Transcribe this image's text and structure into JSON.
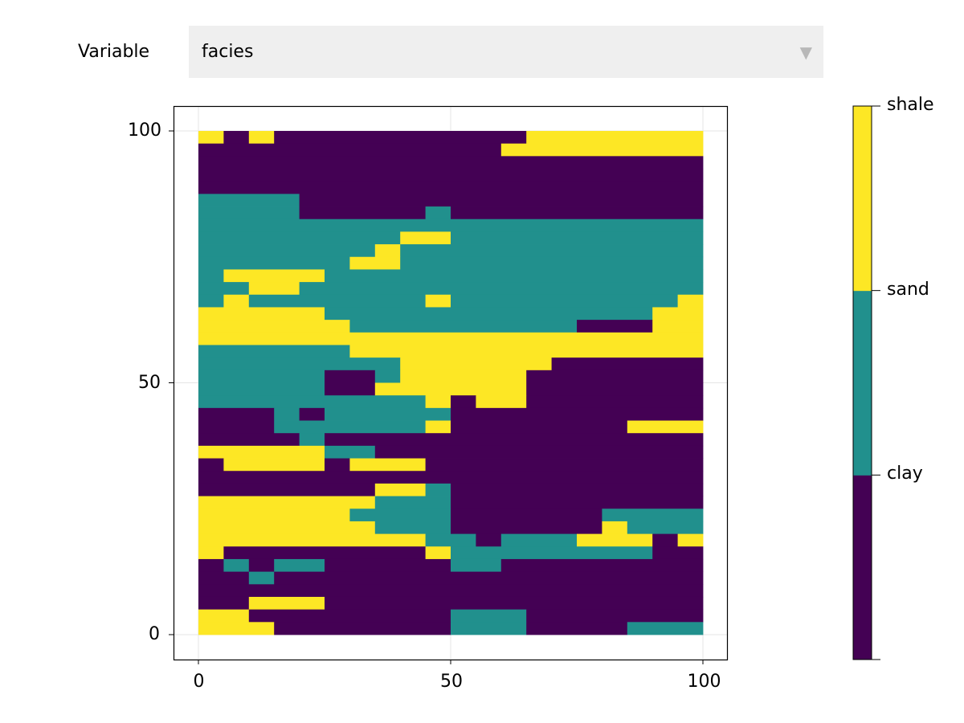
{
  "control": {
    "label": "Variable",
    "selected": "facies",
    "icon": "dropdown-triangle-icon"
  },
  "chart_data": {
    "type": "heatmap",
    "xlim": [
      0,
      100
    ],
    "ylim": [
      0,
      100
    ],
    "xticks": [
      "0",
      "50",
      "100"
    ],
    "yticks": [
      "0",
      "50",
      "100"
    ],
    "grid": true,
    "x_step": 5,
    "y_step": 2.5,
    "categories": [
      "clay",
      "sand",
      "shale"
    ],
    "category_colors": [
      "#440154",
      "#21908d",
      "#fde725"
    ],
    "colorbar": {
      "placement": "right",
      "tick_labels": [
        "clay",
        "sand",
        "shale"
      ]
    },
    "rows_top_to_bottom": [
      "20200000000002222222",
      "00000000000022222222",
      "00000000000000000000",
      "00000000000000000000",
      "00000000000000000000",
      "11110000000000000000",
      "11110000010000000000",
      "11111111111111111111",
      "11111111221111111111",
      "11111112111111111111",
      "11111122111111111111",
      "12222111111111111111",
      "11221111111111111111",
      "12111111121111111112",
      "22222111111111111122",
      "22222211111111100022",
      "22222222222222222222",
      "11111122222222222222",
      "11111111222222000000",
      "11111001222220000000",
      "11111002222220000000",
      "11111111120220000000",
      "00010111110000000000",
      "00011111120000000222",
      "00001000000000000000",
      "22222110000000000000",
      "02222022200000000000",
      "00000000000000000000",
      "00000002210000000000",
      "22222221110000000000",
      "22222211110000001111",
      "22222221110000002111",
      "22222222211011122202",
      "20000000021111111100",
      "01011000001100000000",
      "00100000000000000000",
      "00000000000000000000",
      "00222000000000000000",
      "22000000001110000000",
      "22200000001110000111"
    ]
  }
}
